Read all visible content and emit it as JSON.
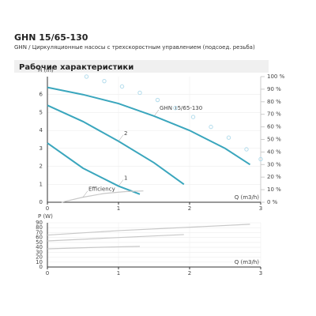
{
  "header": {
    "title": "GHN 15/65-130",
    "subtitle": "GHN / Циркуляционные насосы с трехскоростным управлением (подсоед. резьба)"
  },
  "section_title": "Рабочие характеристики",
  "chart_data": [
    {
      "type": "line",
      "ylabel": "H (m)",
      "xlabel": "Q (m3/h)",
      "xlim": [
        0,
        3
      ],
      "xticks": [
        0,
        1,
        2,
        3
      ],
      "ylim": [
        0,
        7
      ],
      "yticks": [
        0,
        1,
        2,
        3,
        4,
        5,
        6
      ],
      "y2lim": [
        0,
        100
      ],
      "y2ticks": [
        {
          "value": 0,
          "label": "0 %"
        },
        {
          "value": 10,
          "label": "10 %"
        },
        {
          "value": 20,
          "label": "20 %"
        },
        {
          "value": 30,
          "label": "30 %"
        },
        {
          "value": 40,
          "label": "40 %"
        },
        {
          "value": 50,
          "label": "50 %"
        },
        {
          "value": 60,
          "label": "60 %"
        },
        {
          "value": 70,
          "label": "70 %"
        },
        {
          "value": 80,
          "label": "80 %"
        },
        {
          "value": 90,
          "label": "90 %"
        },
        {
          "value": 100,
          "label": "100 %"
        }
      ],
      "grid": true,
      "series": [
        {
          "name": "GHN 15/65-130",
          "color": "#3aa6bd",
          "x": [
            0,
            0.5,
            1,
            1.5,
            2,
            2.5,
            2.85
          ],
          "values": [
            6.4,
            6.0,
            5.5,
            4.8,
            4.0,
            3.0,
            2.1
          ]
        },
        {
          "name": "2",
          "color": "#3aa6bd",
          "x": [
            0,
            0.5,
            1,
            1.5,
            1.92
          ],
          "values": [
            5.4,
            4.5,
            3.4,
            2.2,
            1.0
          ]
        },
        {
          "name": "1",
          "color": "#3aa6bd",
          "x": [
            0,
            0.5,
            1,
            1.3
          ],
          "values": [
            3.3,
            1.9,
            0.9,
            0.45
          ]
        },
        {
          "name": "Efficiency",
          "color": "#c8c8c8",
          "axis": "y2",
          "x": [
            0.2,
            0.5,
            0.8,
            1.1,
            1.35
          ],
          "values": [
            0,
            4,
            7,
            8.5,
            9
          ]
        },
        {
          "color": "#b3dcec",
          "marker": "circle",
          "x": [
            0.55,
            0.8,
            1.05,
            1.3,
            1.55,
            1.8,
            2.05,
            2.3,
            2.55,
            2.8,
            3.0
          ],
          "values": [
            7.0,
            6.75,
            6.45,
            6.1,
            5.7,
            5.25,
            4.75,
            4.2,
            3.6,
            2.95,
            2.4
          ]
        }
      ]
    },
    {
      "type": "line",
      "ylabel": "P (W)",
      "xlabel": "Q (m3/h)",
      "xlim": [
        0,
        3
      ],
      "xticks": [
        0,
        1,
        2,
        3
      ],
      "ylim": [
        0,
        90
      ],
      "yticks": [
        0,
        10,
        20,
        30,
        40,
        50,
        60,
        70,
        80,
        90
      ],
      "grid": true,
      "series": [
        {
          "color": "#c8c8c8",
          "x": [
            0,
            1,
            2,
            2.85
          ],
          "values": [
            65,
            74,
            81,
            87
          ]
        },
        {
          "color": "#c8c8c8",
          "x": [
            0,
            1,
            1.92
          ],
          "values": [
            53,
            60,
            66
          ]
        },
        {
          "color": "#c8c8c8",
          "x": [
            0,
            0.7,
            1.3
          ],
          "values": [
            37,
            40,
            42
          ]
        }
      ]
    }
  ]
}
